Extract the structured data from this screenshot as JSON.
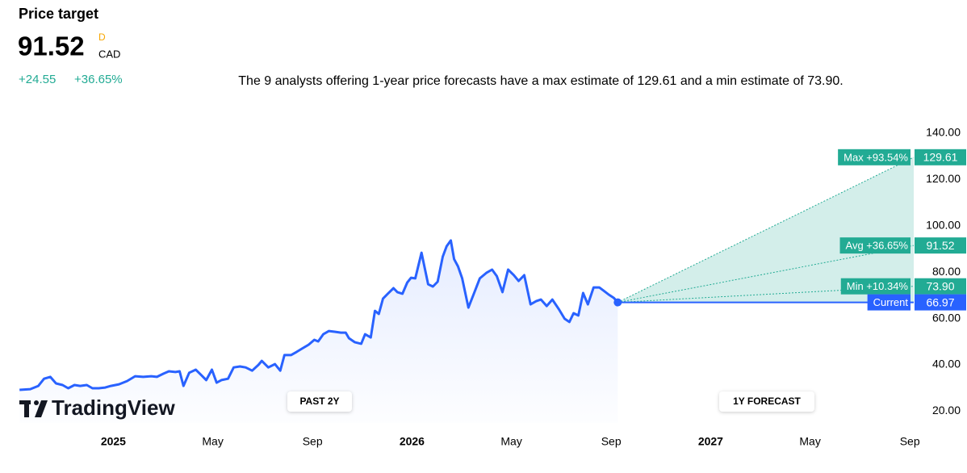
{
  "chart_data": {
    "type": "line",
    "title": "Price target",
    "price": 91.52,
    "interval": "D",
    "currency": "CAD",
    "change": "+24.55",
    "change_percent": "+36.65%",
    "description": "The 9 analysts offering 1-year price forecasts have a max estimate of 129.61 and a min estimate of 73.90.",
    "watermark": "TradingView",
    "annotations": [
      "PAST 2Y",
      "1Y FORECAST"
    ],
    "color": "#2962ff",
    "x": [
      2024.686,
      2024.722,
      2024.749,
      2024.768,
      2024.789,
      2024.808,
      2024.83,
      2024.849,
      2024.87,
      2024.889,
      2024.911,
      2024.93,
      2024.951,
      2024.973,
      2024.992,
      2025.019,
      2025.046,
      2025.073,
      2025.1,
      2025.127,
      2025.146,
      2025.168,
      2025.186,
      2025.208,
      2025.222,
      2025.235,
      2025.254,
      2025.276,
      2025.295,
      2025.311,
      2025.33,
      2025.346,
      2025.362,
      2025.384,
      2025.403,
      2025.424,
      2025.443,
      2025.465,
      2025.486,
      2025.497,
      2025.519,
      2025.541,
      2025.559,
      2025.573,
      2025.595,
      2025.614,
      2025.632,
      2025.654,
      2025.673,
      2025.686,
      2025.703,
      2025.722,
      2025.741,
      2025.762,
      2025.778,
      2025.789,
      2025.808,
      2025.83,
      2025.843,
      2025.862,
      2025.876,
      2025.889,
      2025.903,
      2025.919,
      2025.938,
      2025.951,
      2025.968,
      2025.984,
      2025.997,
      2026.011,
      2026.032,
      2026.054,
      2026.07,
      2026.086,
      2026.103,
      2026.116,
      2026.13,
      2026.141,
      2026.154,
      2026.168,
      2026.189,
      2026.208,
      2026.227,
      2026.249,
      2026.268,
      2026.284,
      2026.303,
      2026.322,
      2026.341,
      2026.357,
      2026.376,
      2026.397,
      2026.416,
      2026.432,
      2026.451,
      2026.47,
      2026.492,
      2026.511,
      2026.527,
      2026.541,
      2026.557,
      2026.573,
      2026.589,
      2026.608,
      2026.627,
      2026.641,
      2026.659,
      2026.676,
      2026.689
    ],
    "values": [
      29.2,
      29.5,
      30.9,
      34,
      34.8,
      32,
      31.3,
      29.9,
      31.3,
      30.9,
      31.3,
      29.9,
      29.9,
      30.2,
      30.9,
      31.6,
      33,
      35.1,
      34.8,
      35.1,
      34.8,
      36.2,
      37.2,
      36.9,
      37.2,
      30.9,
      36.6,
      37.9,
      35.5,
      33.4,
      37.9,
      32.3,
      33.4,
      34,
      38.9,
      39.3,
      38.9,
      37.5,
      40,
      41.7,
      38.9,
      40.3,
      37.5,
      44.2,
      44.2,
      45.6,
      47,
      48.7,
      50.8,
      50.1,
      53.2,
      54.6,
      54.3,
      53.9,
      53.9,
      51.5,
      49.8,
      49.1,
      53.2,
      51.8,
      63.3,
      62,
      68.6,
      70.7,
      73.1,
      71.4,
      70.7,
      75.5,
      77.6,
      77.3,
      88.4,
      74.8,
      73.8,
      75.9,
      86.7,
      91.2,
      93.7,
      85.6,
      82.5,
      77.3,
      64.7,
      71,
      77.3,
      79.7,
      81.1,
      78.3,
      71.4,
      81.1,
      78.7,
      76.2,
      78.7,
      66.1,
      67.5,
      68.2,
      65.4,
      68.2,
      64,
      59.9,
      58.5,
      62.3,
      61.3,
      71,
      66.1,
      73.4,
      73.4,
      72.1,
      70.3,
      68.9,
      66.97
    ],
    "targets": [
      {
        "label": "Max +93.54%",
        "value": 129.61,
        "value_label": "129.61",
        "color": "#22ab94"
      },
      {
        "label": "Avg +36.65%",
        "value": 91.52,
        "value_label": "91.52",
        "color": "#22ab94"
      },
      {
        "label": "Min +10.34%",
        "value": 73.9,
        "value_label": "73.90",
        "color": "#22ab94"
      },
      {
        "label": "Current",
        "value": 66.97,
        "value_label": "66.97",
        "color": "#2962ff"
      }
    ],
    "xlim": [
      2024.68,
      2027.68
    ],
    "xticks": [
      2025,
      {
        "value": 2025.333,
        "label": "May"
      },
      {
        "value": 2025.667,
        "label": "Sep"
      },
      2026,
      {
        "value": 2026.333,
        "label": "May"
      },
      {
        "value": 2026.667,
        "label": "Sep"
      },
      2027,
      {
        "value": 2027.333,
        "label": "May"
      },
      {
        "value": 2027.667,
        "label": "Sep"
      }
    ],
    "ylim": [
      15,
      145
    ],
    "yticks": [
      {
        "value": 20,
        "label": "20.00"
      },
      {
        "value": 40,
        "label": "40.00"
      },
      {
        "value": 60,
        "label": "60.00"
      },
      {
        "value": 80,
        "label": "80.00"
      },
      {
        "value": 100,
        "label": "100.00"
      },
      {
        "value": 120,
        "label": "120.00"
      },
      {
        "value": 140,
        "label": "140.00"
      }
    ]
  }
}
